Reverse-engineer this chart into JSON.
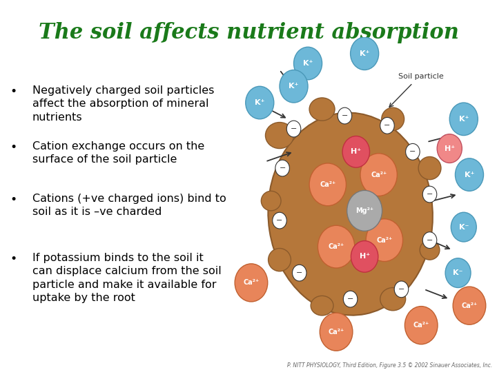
{
  "title": "The soil affects nutrient absorption",
  "title_color": "#1a7a1a",
  "title_fontsize": 22,
  "background_color": "#ffffff",
  "bullet_points": [
    "Negatively charged soil particles\naffect the absorption of mineral\nnutrients",
    "Cation exchange occurs on the\nsurface of the soil particle",
    "Cations (+ve charged ions) bind to\nsoil as it is –ve charded",
    "If potassium binds to the soil it\ncan displace calcium from the soil\nparticle and make it available for\nuptake by the root"
  ],
  "bullet_fontsize": 11.5,
  "bullet_color": "#000000",
  "footer_text": "P. NITT PHYSIOLOGY, Third Edition, Figure 3.5 © 2002 Sinauer Associates, Inc.",
  "footer_fontsize": 5.5,
  "footer_color": "#666666",
  "blue_cation": "#6db8d8",
  "orange_cation": "#e8855a",
  "gray_cation": "#aaaaaa",
  "brown_soil": "#b5773a",
  "soil_edge": "#8b5a2b"
}
